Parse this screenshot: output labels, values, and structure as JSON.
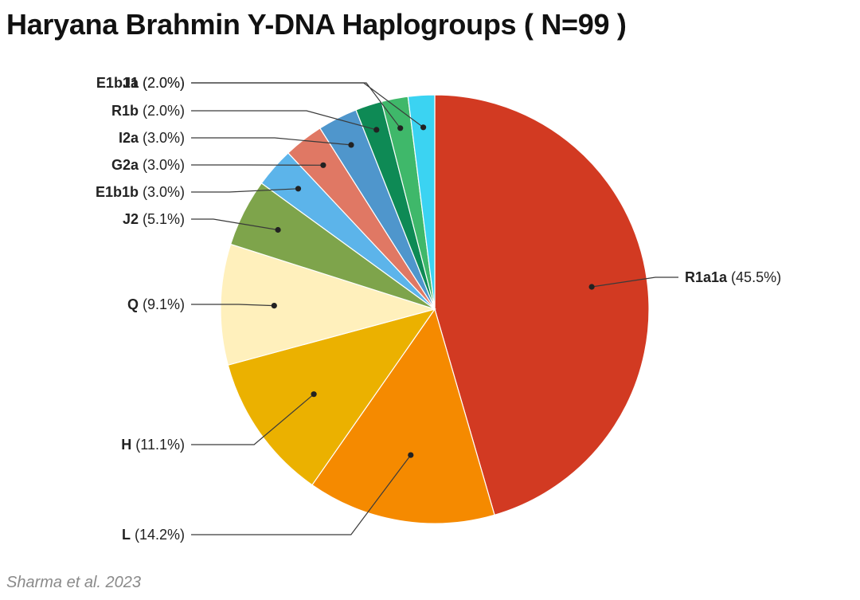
{
  "chart_data": {
    "type": "pie",
    "title": "Haryana Brahmin Y-DNA Haplogroups ( N=99 )",
    "source": "Sharma et al. 2023",
    "start_angle_deg": 0,
    "direction": "clockwise",
    "slices": [
      {
        "name": "R1a1a",
        "percent_label": "(45.5%)",
        "value": 45.5,
        "color": "#d23a22"
      },
      {
        "name": "L",
        "percent_label": "(14.2%)",
        "value": 14.2,
        "color": "#f58a00"
      },
      {
        "name": "H",
        "percent_label": "(11.1%)",
        "value": 11.1,
        "color": "#ebb100"
      },
      {
        "name": "Q",
        "percent_label": "(9.1%)",
        "value": 9.1,
        "color": "#fff0bc"
      },
      {
        "name": "J2",
        "percent_label": "(5.1%)",
        "value": 5.1,
        "color": "#7ea44b"
      },
      {
        "name": "E1b1b",
        "percent_label": "(3.0%)",
        "value": 3.0,
        "color": "#5cb4ea"
      },
      {
        "name": "G2a",
        "percent_label": "(3.0%)",
        "value": 3.0,
        "color": "#e07864"
      },
      {
        "name": "I2a",
        "percent_label": "(3.0%)",
        "value": 3.0,
        "color": "#4f96cc"
      },
      {
        "name": "R1b",
        "percent_label": "(2.0%)",
        "value": 2.0,
        "color": "#0e8a55"
      },
      {
        "name": "J1",
        "percent_label": "(2.0%)",
        "value": 2.0,
        "color": "#3fb86a"
      },
      {
        "name": "E1b1a",
        "percent_label": "(2.0%)",
        "value": 2.0,
        "color": "#3bd3f2"
      }
    ]
  }
}
